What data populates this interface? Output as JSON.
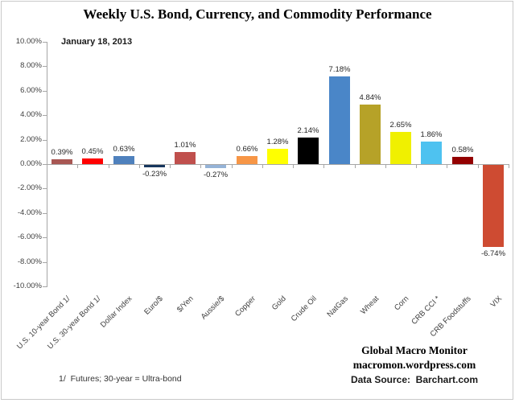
{
  "title": "Weekly U.S. Bond, Currency, and Commodity Performance",
  "date": "January 18, 2013",
  "footer": {
    "brand_line1": "Global Macro Monitor",
    "brand_line2": "macromon.wordpress.com",
    "data_source": "Data Source:  Barchart.com",
    "footnote": "1/  Futures; 30-year = Ultra-bond"
  },
  "colors": {
    "axis": "#a6a6a6",
    "value_label_text": "#262626",
    "tick_label_text": "#3f3f3f",
    "background": "#ffffff"
  },
  "chart_data": {
    "type": "bar",
    "title": "Weekly U.S. Bond, Currency, and Commodity Performance",
    "subtitle": "January 18, 2013",
    "categories": [
      "U.S. 10-year Bond 1/",
      "U.S. 30-year Bond 1/",
      "Dollar Index",
      "Euro/$",
      "$/Yen",
      "Aussie/$",
      "Copper",
      "Gold",
      "Crude Oil",
      "NatGas",
      "Wheat",
      "Corn",
      "CRB CCI *",
      "CRB Foodstuffs",
      "VIX"
    ],
    "values": [
      0.39,
      0.45,
      0.63,
      -0.23,
      1.01,
      -0.27,
      0.66,
      1.28,
      2.14,
      7.18,
      4.84,
      2.65,
      1.86,
      0.58,
      -6.74
    ],
    "value_labels": [
      "0.39%",
      "0.45%",
      "0.63%",
      "-0.23%",
      "1.01%",
      "-0.27%",
      "0.66%",
      "1.28%",
      "2.14%",
      "7.18%",
      "4.84%",
      "2.65%",
      "1.86%",
      "0.58%",
      "-6.74%"
    ],
    "bar_colors": [
      "#a85753",
      "#ff0000",
      "#4f81bd",
      "#17375e",
      "#c0504d",
      "#95b3d7",
      "#f79646",
      "#ffff00",
      "#000000",
      "#4a86c8",
      "#b6a228",
      "#f0f000",
      "#4ec2f0",
      "#930000",
      "#ce4b32"
    ],
    "ylim": [
      -10,
      10
    ],
    "ytick_step": 2,
    "ytick_labels": [
      "10.00%",
      "8.00%",
      "6.00%",
      "4.00%",
      "2.00%",
      "0.00%",
      "-2.00%",
      "-4.00%",
      "-6.00%",
      "-8.00%",
      "-10.00%"
    ],
    "grid": false,
    "legend": "none",
    "bar_label_position": "outside-end",
    "category_label_rotation_deg": -45
  }
}
